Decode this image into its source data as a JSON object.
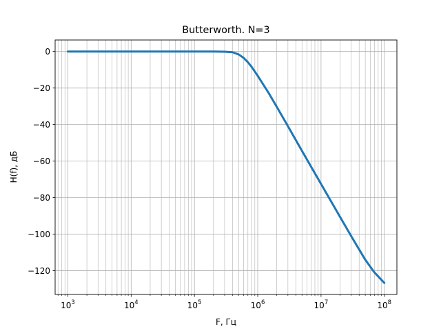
{
  "chart_data": {
    "type": "line",
    "title": "Butterworth. N=3",
    "xlabel": "F, Гц",
    "ylabel": "H(f), дБ",
    "xscale": "log",
    "xlim": [
      630,
      158000000
    ],
    "ylim": [
      -133,
      6.3
    ],
    "grid": "major and minor",
    "x_ticks": [
      {
        "value": 1000,
        "base": "10",
        "exp": "3"
      },
      {
        "value": 10000,
        "base": "10",
        "exp": "4"
      },
      {
        "value": 100000,
        "base": "10",
        "exp": "5"
      },
      {
        "value": 1000000,
        "base": "10",
        "exp": "6"
      },
      {
        "value": 10000000,
        "base": "10",
        "exp": "7"
      },
      {
        "value": 100000000,
        "base": "10",
        "exp": "8"
      }
    ],
    "y_ticks": [
      {
        "value": 0,
        "label": "0"
      },
      {
        "value": -20,
        "label": "−20"
      },
      {
        "value": -40,
        "label": "−40"
      },
      {
        "value": -60,
        "label": "−60"
      },
      {
        "value": -80,
        "label": "−80"
      },
      {
        "value": -100,
        "label": "−100"
      },
      {
        "value": -120,
        "label": "−120"
      }
    ],
    "series": [
      {
        "color": "#1f77b4",
        "x": [
          1000,
          10000,
          100000,
          200000,
          300000,
          400000,
          500000,
          600000,
          700000,
          800000,
          1000000,
          1500000,
          2000000,
          3000000,
          5000000,
          10000000,
          20000000,
          30000000,
          50000000,
          70000000,
          100000000
        ],
        "y": [
          0,
          0,
          0,
          0,
          -0.1,
          -0.4,
          -1.6,
          -3.5,
          -5.9,
          -8.4,
          -13.3,
          -22.9,
          -30.3,
          -40.9,
          -54.4,
          -72.5,
          -90.6,
          -101.1,
          -114.0,
          -121.0,
          -126.7
        ]
      }
    ]
  }
}
